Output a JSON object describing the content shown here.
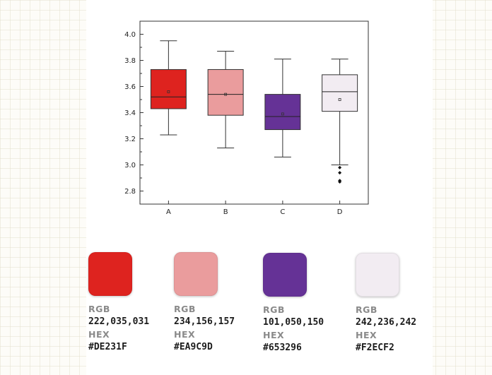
{
  "chart_data": {
    "type": "box",
    "title": "",
    "xlabel": "",
    "ylabel": "",
    "ylim": [
      2.7,
      4.1
    ],
    "yticks": [
      2.8,
      3.0,
      3.2,
      3.4,
      3.6,
      3.8,
      4.0
    ],
    "ytick_labels": [
      "2.8",
      "3.0",
      "3.2",
      "3.4",
      "3.6",
      "3.8",
      "4.0"
    ],
    "categories": [
      "A",
      "B",
      "C",
      "D"
    ],
    "boxes": [
      {
        "name": "A",
        "whisker_low": 3.23,
        "q1": 3.43,
        "median": 3.52,
        "q3": 3.73,
        "whisker_high": 3.95,
        "mean": 3.56,
        "outliers": [],
        "color": "#DE231F"
      },
      {
        "name": "B",
        "whisker_low": 3.13,
        "q1": 3.38,
        "median": 3.54,
        "q3": 3.73,
        "whisker_high": 3.87,
        "mean": 3.54,
        "outliers": [],
        "color": "#EA9C9D"
      },
      {
        "name": "C",
        "whisker_low": 3.06,
        "q1": 3.27,
        "median": 3.37,
        "q3": 3.54,
        "whisker_high": 3.81,
        "mean": 3.39,
        "outliers": [],
        "color": "#653296"
      },
      {
        "name": "D",
        "whisker_low": 3.0,
        "q1": 3.41,
        "median": 3.56,
        "q3": 3.69,
        "whisker_high": 3.81,
        "mean": 3.5,
        "outliers": [
          2.98,
          2.94,
          2.88,
          2.87
        ],
        "color": "#F2ECF2"
      }
    ]
  },
  "palette": [
    {
      "rgb_label": "RGB",
      "rgb": "222,035,031",
      "hex_label": "HEX",
      "hex": "#DE231F",
      "color": "#DE231F"
    },
    {
      "rgb_label": "RGB",
      "rgb": "234,156,157",
      "hex_label": "HEX",
      "hex": "#EA9C9D",
      "color": "#EA9C9D"
    },
    {
      "rgb_label": "RGB",
      "rgb": "101,050,150",
      "hex_label": "HEX",
      "hex": "#653296",
      "color": "#653296"
    },
    {
      "rgb_label": "RGB",
      "rgb": "242,236,242",
      "hex_label": "HEX",
      "hex": "#F2ECF2",
      "color": "#F2ECF2"
    }
  ]
}
